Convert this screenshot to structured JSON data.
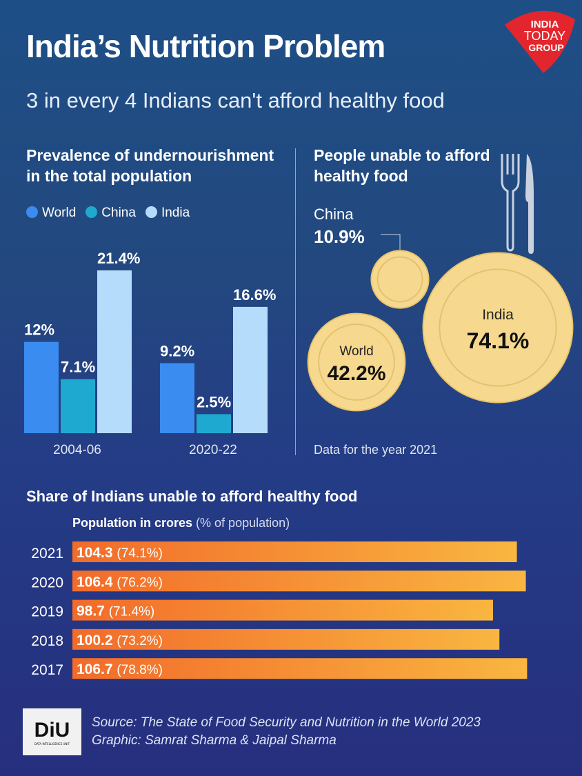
{
  "header": {
    "title": "India’s Nutrition Problem",
    "subtitle": "3 in every 4 Indians can't afford healthy food",
    "brand_logo": "INDIA TODAY GROUP"
  },
  "colors": {
    "world": "#3b8cf0",
    "china": "#1eaad0",
    "india": "#b6dcfb",
    "plate": "#f6d98e",
    "bar": "#f58a2e"
  },
  "chart_data": [
    {
      "type": "bar",
      "title": "Prevalence of undernourishment in the total population",
      "categories": [
        "2004-06",
        "2020-22"
      ],
      "series": [
        {
          "name": "World",
          "values": [
            12,
            9.2
          ]
        },
        {
          "name": "China",
          "values": [
            7.1,
            2.5
          ]
        },
        {
          "name": "India",
          "values": [
            21.4,
            16.6
          ]
        }
      ],
      "labels": [
        [
          "12%",
          "7.1%",
          "21.4%"
        ],
        [
          "9.2%",
          "2.5%",
          "16.6%"
        ]
      ],
      "legend": "top-left",
      "grid": false
    },
    {
      "type": "bubble",
      "title": "People unable to afford healthy food",
      "items": [
        {
          "name": "China",
          "value": 10.9,
          "label": "10.9%"
        },
        {
          "name": "World",
          "value": 42.2,
          "label": "42.2%"
        },
        {
          "name": "India",
          "value": 74.1,
          "label": "74.1%"
        }
      ],
      "note": "Data for the year 2021"
    },
    {
      "type": "bar",
      "orientation": "horizontal",
      "title": "Share of Indians unable to afford healthy food",
      "subtitle_bold": "Population in crores",
      "subtitle_rest": "(% of population)",
      "categories": [
        "2021",
        "2020",
        "2019",
        "2018",
        "2017"
      ],
      "values": [
        104.3,
        106.4,
        98.7,
        100.2,
        106.7
      ],
      "percents": [
        "(74.1%)",
        "(76.2%)",
        "(71.4%)",
        "(73.2%)",
        "(78.8%)"
      ]
    }
  ],
  "footer": {
    "logo": "DiU",
    "logo_sub": "DATA INTELLIGENCE UNIT",
    "source": "Source: The State of Food Security and Nutrition in the World 2023",
    "credit": "Graphic: Samrat Sharma & Jaipal Sharma"
  }
}
